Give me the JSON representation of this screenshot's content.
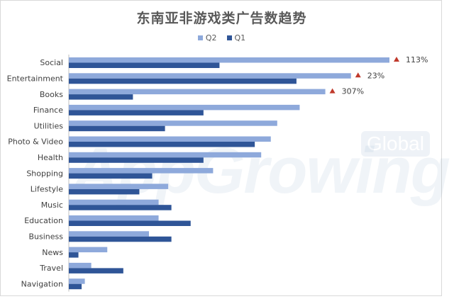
{
  "chart_data": {
    "type": "bar",
    "orientation": "horizontal",
    "title": "东南亚非游戏类广告数趋势",
    "categories": [
      "Social",
      "Entertainment",
      "Books",
      "Finance",
      "Utilities",
      "Photo & Video",
      "Health",
      "Shopping",
      "Lifestyle",
      "Music",
      "Education",
      "Business",
      "News",
      "Travel",
      "Navigation"
    ],
    "series": [
      {
        "name": "Q2",
        "color": "#8ea9db",
        "values": [
          100,
          88,
          80,
          72,
          65,
          63,
          60,
          45,
          31,
          28,
          28,
          25,
          12,
          7,
          5
        ]
      },
      {
        "name": "Q1",
        "color": "#2f5597",
        "values": [
          47,
          71,
          20,
          42,
          30,
          58,
          42,
          26,
          22,
          32,
          38,
          32,
          3,
          17,
          4
        ]
      }
    ],
    "xlim": [
      0,
      115
    ],
    "grid": false,
    "legend_position": "top",
    "annotations": [
      {
        "category": "Social",
        "text": "113%"
      },
      {
        "category": "Entertainment",
        "text": "23%"
      },
      {
        "category": "Books",
        "text": "307%"
      }
    ],
    "annotation_marker_color": "#c0392b"
  },
  "watermark": {
    "main": "AppGrowing",
    "badge": "Global"
  }
}
